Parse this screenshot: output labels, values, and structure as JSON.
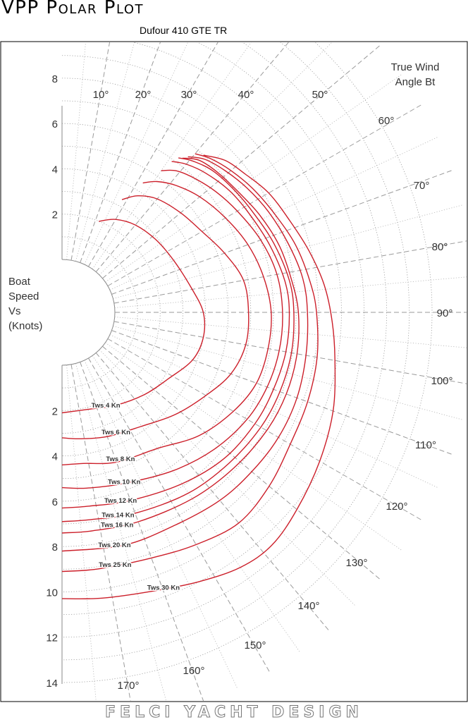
{
  "title": "VPP Polar Plot",
  "subtitle": "Dufour 410 GTE TR",
  "footer": "FELCI YACHT DESIGN",
  "chart_data": {
    "type": "polar-line",
    "title": "VPP Polar Plot",
    "subtitle": "Dufour 410 GTE TR",
    "angle_label": [
      "True Wind",
      "Angle Bt"
    ],
    "radius_label": [
      "Boat",
      "Speed",
      "Vs",
      "(Knots)"
    ],
    "angle_ticks": [
      10,
      20,
      30,
      40,
      50,
      60,
      70,
      80,
      90,
      100,
      110,
      120,
      130,
      140,
      150,
      160,
      170
    ],
    "radius_ticks": [
      2,
      4,
      6,
      8,
      10,
      12,
      14
    ],
    "radius_ticks_upper": [
      2,
      4,
      6,
      8
    ],
    "grid": true,
    "series_color": "#cc1f2a",
    "series": [
      {
        "name": "Tws 4 Kn",
        "points": [
          [
            22,
            2.0
          ],
          [
            30,
            2.4
          ],
          [
            40,
            2.7
          ],
          [
            52,
            2.9
          ],
          [
            65,
            3.1
          ],
          [
            80,
            3.5
          ],
          [
            90,
            3.9
          ],
          [
            100,
            4.0
          ],
          [
            110,
            3.8
          ],
          [
            122,
            3.2
          ],
          [
            135,
            2.8
          ],
          [
            150,
            2.4
          ],
          [
            165,
            2.1
          ],
          [
            180,
            2.1
          ]
        ]
      },
      {
        "name": "Tws 6 Kn",
        "points": [
          [
            28,
            3.3
          ],
          [
            33,
            3.8
          ],
          [
            40,
            4.2
          ],
          [
            50,
            4.5
          ],
          [
            60,
            4.8
          ],
          [
            70,
            5.3
          ],
          [
            80,
            5.8
          ],
          [
            90,
            5.9
          ],
          [
            100,
            5.9
          ],
          [
            110,
            5.6
          ],
          [
            120,
            5.0
          ],
          [
            132,
            4.4
          ],
          [
            145,
            3.8
          ],
          [
            160,
            3.5
          ],
          [
            172,
            3.3
          ],
          [
            180,
            3.2
          ]
        ]
      },
      {
        "name": "Tws 8 Kn",
        "points": [
          [
            32,
            4.4
          ],
          [
            36,
            4.8
          ],
          [
            42,
            5.2
          ],
          [
            50,
            5.6
          ],
          [
            60,
            6.0
          ],
          [
            70,
            6.4
          ],
          [
            80,
            6.7
          ],
          [
            90,
            6.9
          ],
          [
            100,
            6.9
          ],
          [
            110,
            6.8
          ],
          [
            120,
            6.4
          ],
          [
            132,
            5.8
          ],
          [
            145,
            5.0
          ],
          [
            160,
            4.7
          ],
          [
            172,
            4.4
          ],
          [
            180,
            4.4
          ]
        ]
      },
      {
        "name": "Tws 10 Kn",
        "points": [
          [
            35,
            5.3
          ],
          [
            39,
            5.7
          ],
          [
            45,
            6.0
          ],
          [
            52,
            6.3
          ],
          [
            60,
            6.6
          ],
          [
            70,
            7.0
          ],
          [
            80,
            7.3
          ],
          [
            90,
            7.4
          ],
          [
            100,
            7.4
          ],
          [
            110,
            7.3
          ],
          [
            120,
            7.1
          ],
          [
            132,
            6.7
          ],
          [
            145,
            6.2
          ],
          [
            160,
            5.7
          ],
          [
            172,
            5.5
          ],
          [
            180,
            5.4
          ]
        ]
      },
      {
        "name": "Tws 12 Kn",
        "points": [
          [
            36,
            5.9
          ],
          [
            40,
            6.2
          ],
          [
            46,
            6.5
          ],
          [
            54,
            6.8
          ],
          [
            62,
            7.0
          ],
          [
            72,
            7.3
          ],
          [
            82,
            7.6
          ],
          [
            90,
            7.7
          ],
          [
            100,
            7.7
          ],
          [
            110,
            7.6
          ],
          [
            120,
            7.5
          ],
          [
            132,
            7.3
          ],
          [
            145,
            6.9
          ],
          [
            160,
            6.5
          ],
          [
            172,
            6.3
          ],
          [
            180,
            6.3
          ]
        ]
      },
      {
        "name": "Tws 14 Kn",
        "points": [
          [
            37,
            6.2
          ],
          [
            41,
            6.5
          ],
          [
            47,
            6.8
          ],
          [
            55,
            7.0
          ],
          [
            63,
            7.2
          ],
          [
            72,
            7.5
          ],
          [
            82,
            7.8
          ],
          [
            90,
            7.9
          ],
          [
            100,
            7.95
          ],
          [
            110,
            7.9
          ],
          [
            120,
            7.8
          ],
          [
            132,
            7.6
          ],
          [
            145,
            7.4
          ],
          [
            160,
            7.1
          ],
          [
            172,
            6.9
          ],
          [
            180,
            6.9
          ]
        ]
      },
      {
        "name": "Tws 16 Kn",
        "points": [
          [
            38,
            6.3
          ],
          [
            42,
            6.7
          ],
          [
            48,
            6.9
          ],
          [
            56,
            7.1
          ],
          [
            64,
            7.4
          ],
          [
            73,
            7.7
          ],
          [
            82,
            7.9
          ],
          [
            90,
            8.1
          ],
          [
            100,
            8.2
          ],
          [
            110,
            8.2
          ],
          [
            120,
            8.1
          ],
          [
            132,
            7.9
          ],
          [
            145,
            7.7
          ],
          [
            160,
            7.5
          ],
          [
            172,
            7.4
          ],
          [
            180,
            7.4
          ]
        ]
      },
      {
        "name": "Tws 20 Kn",
        "points": [
          [
            39,
            6.5
          ],
          [
            43,
            6.9
          ],
          [
            49,
            7.2
          ],
          [
            56,
            7.5
          ],
          [
            64,
            7.8
          ],
          [
            73,
            8.1
          ],
          [
            82,
            8.4
          ],
          [
            90,
            8.5
          ],
          [
            100,
            8.6
          ],
          [
            110,
            8.7
          ],
          [
            120,
            8.7
          ],
          [
            130,
            8.6
          ],
          [
            140,
            8.5
          ],
          [
            152,
            8.3
          ],
          [
            165,
            8.3
          ],
          [
            180,
            8.2
          ]
        ]
      },
      {
        "name": "Tws 25 Kn",
        "points": [
          [
            40,
            6.8
          ],
          [
            44,
            7.1
          ],
          [
            50,
            7.4
          ],
          [
            57,
            7.7
          ],
          [
            65,
            8.0
          ],
          [
            74,
            8.4
          ],
          [
            83,
            8.7
          ],
          [
            90,
            8.9
          ],
          [
            100,
            9.1
          ],
          [
            110,
            9.2
          ],
          [
            120,
            9.3
          ],
          [
            130,
            9.6
          ],
          [
            140,
            9.8
          ],
          [
            150,
            9.5
          ],
          [
            160,
            9.2
          ],
          [
            172,
            9.1
          ],
          [
            180,
            9.1
          ]
        ]
      },
      {
        "name": "Tws 30 Kn",
        "points": [
          [
            42,
            7.0
          ],
          [
            47,
            7.5
          ],
          [
            53,
            7.8
          ],
          [
            60,
            8.2
          ],
          [
            68,
            8.5
          ],
          [
            76,
            8.9
          ],
          [
            84,
            9.3
          ],
          [
            92,
            9.6
          ],
          [
            100,
            9.9
          ],
          [
            110,
            10.4
          ],
          [
            120,
            10.8
          ],
          [
            130,
            11.2
          ],
          [
            138,
            11.5
          ],
          [
            145,
            11.4
          ],
          [
            153,
            11.0
          ],
          [
            162,
            10.6
          ],
          [
            172,
            10.4
          ],
          [
            180,
            10.3
          ]
        ]
      }
    ],
    "label_angles": [
      150,
      152,
      155,
      157,
      160,
      162,
      163,
      165,
      166,
      158
    ]
  }
}
